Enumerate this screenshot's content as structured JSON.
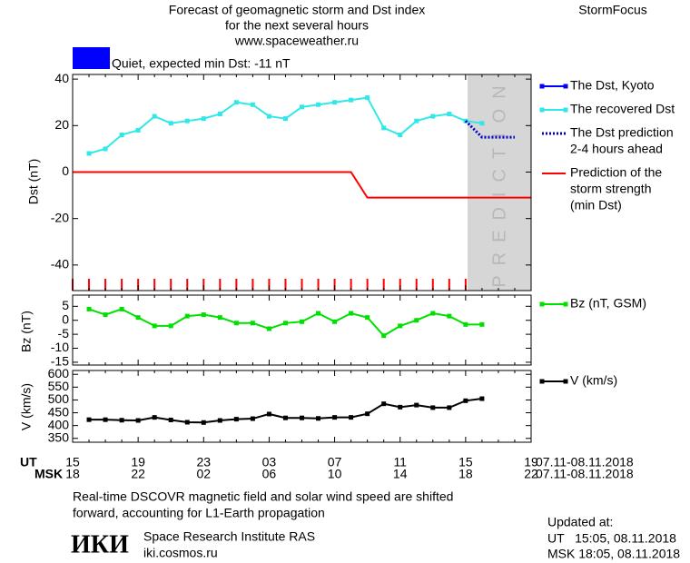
{
  "header": {
    "title": [
      "Forecast of geomagnetic storm and Dst index",
      "for the next several hours",
      "www.spaceweather.ru"
    ],
    "brand": "StormFocus",
    "status": "Quiet, expected min Dst: -11 nT",
    "status_color": "#0000ff",
    "shade_label": "PREDICTION"
  },
  "x_axis": {
    "ut_label": "UT",
    "ut": [
      "15",
      null,
      null,
      null,
      "19",
      null,
      null,
      null,
      "23",
      null,
      null,
      null,
      "03",
      null,
      null,
      null,
      "07",
      null,
      null,
      null,
      "11",
      null,
      null,
      null,
      "15",
      null,
      null,
      null,
      "19"
    ],
    "msk_label": "MSK",
    "msk": [
      "18",
      null,
      null,
      null,
      "22",
      null,
      null,
      null,
      "02",
      null,
      null,
      null,
      "06",
      null,
      null,
      null,
      "10",
      null,
      null,
      null,
      "14",
      null,
      null,
      null,
      "18",
      null,
      null,
      null,
      "22"
    ],
    "date": "07.11-08.11.2018"
  },
  "chart_data": [
    {
      "type": "line",
      "ylabel": "Dst (nT)",
      "ylim": [
        -51,
        42
      ],
      "yticks": [
        -40,
        -20,
        0,
        20,
        40
      ],
      "series": [
        {
          "name": [
            "The Dst, Kyoto"
          ],
          "color": "#0000ff",
          "marker": "square",
          "dash": false,
          "values": [
            null,
            null,
            null,
            null,
            null,
            null,
            null,
            null,
            null,
            null,
            null,
            null,
            null,
            null,
            null,
            null,
            null,
            null,
            null,
            null,
            null,
            null,
            null,
            null,
            null,
            null,
            null,
            null,
            null
          ]
        },
        {
          "name": [
            "The recovered Dst"
          ],
          "color": "#30e8e8",
          "marker": "square",
          "dash": false,
          "values": [
            null,
            8,
            10,
            16,
            18,
            24,
            21,
            22,
            23,
            25,
            30,
            29,
            24,
            23,
            28,
            29,
            30,
            31,
            32,
            19,
            16,
            22,
            24,
            25,
            22,
            21,
            null,
            null,
            null
          ]
        },
        {
          "name": [
            "The Dst prediction",
            "2-4 hours ahead"
          ],
          "color": "#0000cc",
          "marker": null,
          "dash": true,
          "values": [
            null,
            null,
            null,
            null,
            null,
            null,
            null,
            null,
            null,
            null,
            null,
            null,
            null,
            null,
            null,
            null,
            null,
            null,
            null,
            null,
            null,
            null,
            null,
            null,
            22,
            15,
            15,
            15,
            null
          ]
        },
        {
          "name": [
            "Prediction of the",
            "storm strength",
            "(min Dst)"
          ],
          "color": "#ff0000",
          "marker": null,
          "dash": false,
          "values": [
            0,
            0,
            0,
            0,
            0,
            0,
            0,
            0,
            0,
            0,
            0,
            0,
            0,
            0,
            0,
            0,
            0,
            0,
            -11,
            -11,
            -11,
            -11,
            -11,
            -11,
            -11,
            -11,
            -11,
            -11,
            -11
          ]
        }
      ]
    },
    {
      "type": "line",
      "ylabel": "Bz (nT)",
      "ylim": [
        -16,
        9
      ],
      "yticks": [
        -15,
        -10,
        -5,
        0,
        5
      ],
      "series": [
        {
          "name": [
            "Bz (nT, GSM)"
          ],
          "color": "#00e000",
          "marker": "square",
          "dash": false,
          "values": [
            null,
            4,
            2,
            4,
            1,
            -2,
            -2,
            1.5,
            2,
            1,
            -1,
            -1,
            -3,
            -1,
            -0.5,
            2.5,
            -0.5,
            2.5,
            1,
            -5.5,
            -2,
            0,
            2.5,
            1.5,
            -1.5,
            -1.5,
            null,
            null,
            null
          ]
        }
      ]
    },
    {
      "type": "line",
      "ylabel": "V (km/s)",
      "ylim": [
        335,
        615
      ],
      "yticks": [
        350,
        400,
        450,
        500,
        550,
        600
      ],
      "series": [
        {
          "name": [
            "V (km/s)"
          ],
          "color": "#000000",
          "marker": "square",
          "dash": false,
          "values": [
            null,
            423,
            423,
            421,
            420,
            432,
            422,
            413,
            412,
            420,
            425,
            427,
            445,
            430,
            430,
            428,
            432,
            432,
            446,
            485,
            472,
            480,
            470,
            470,
            497,
            505,
            null,
            null,
            null
          ]
        }
      ]
    }
  ],
  "footer": {
    "note": [
      "Real-time DSCOVR magnetic field and solar wind speed are shifted",
      "forward, accounting for L1-Earth propagation"
    ],
    "logo": "ИКИ",
    "institute": "Space Research Institute RAS",
    "site": "iki.cosmos.ru",
    "updated": [
      "Updated at:",
      "UT   15:05, 08.11.2018",
      "MSK 18:05, 08.11.2018"
    ]
  }
}
